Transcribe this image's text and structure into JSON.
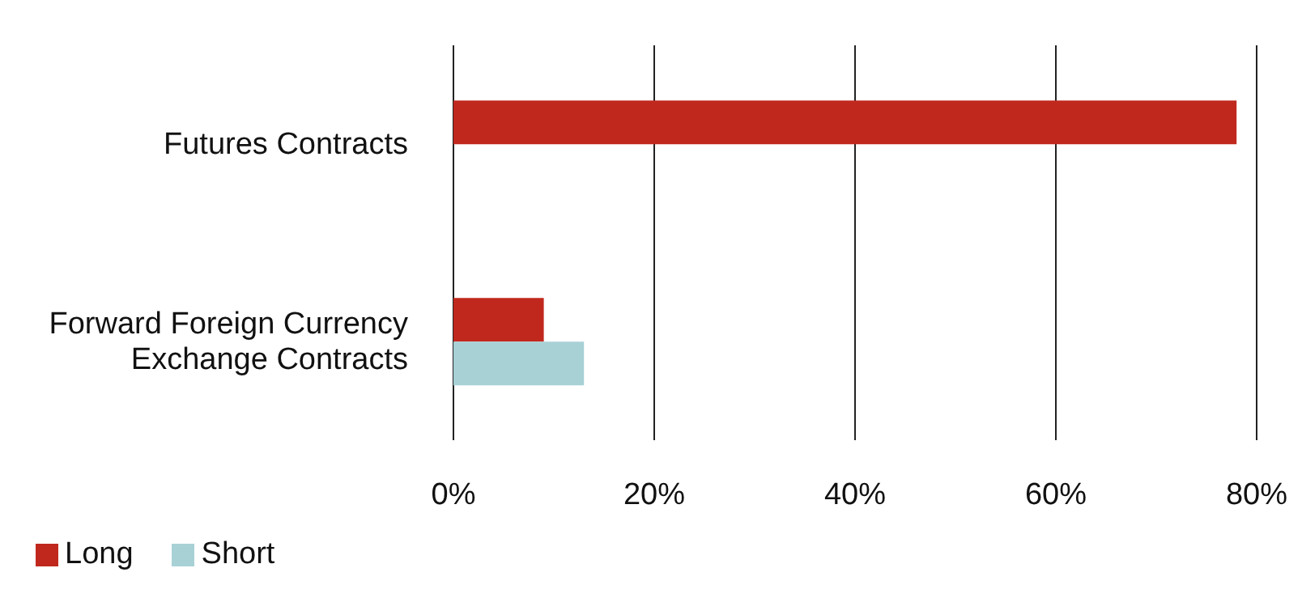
{
  "chart_data": {
    "type": "bar",
    "orientation": "horizontal",
    "categories": [
      "Futures Contracts",
      "Forward Foreign Currency Exchange Contracts"
    ],
    "series": [
      {
        "name": "Long",
        "color": "#c0281e",
        "values": [
          78,
          9
        ]
      },
      {
        "name": "Short",
        "color": "#a8d1d6",
        "values": [
          null,
          13
        ]
      }
    ],
    "xlim": [
      0,
      80
    ],
    "xticks": [
      {
        "value": 0,
        "label": "0%"
      },
      {
        "value": 20,
        "label": "20%"
      },
      {
        "value": 40,
        "label": "40%"
      },
      {
        "value": 60,
        "label": "60%"
      },
      {
        "value": 80,
        "label": "80%"
      }
    ],
    "grid": "x",
    "legend": "bottom left"
  }
}
